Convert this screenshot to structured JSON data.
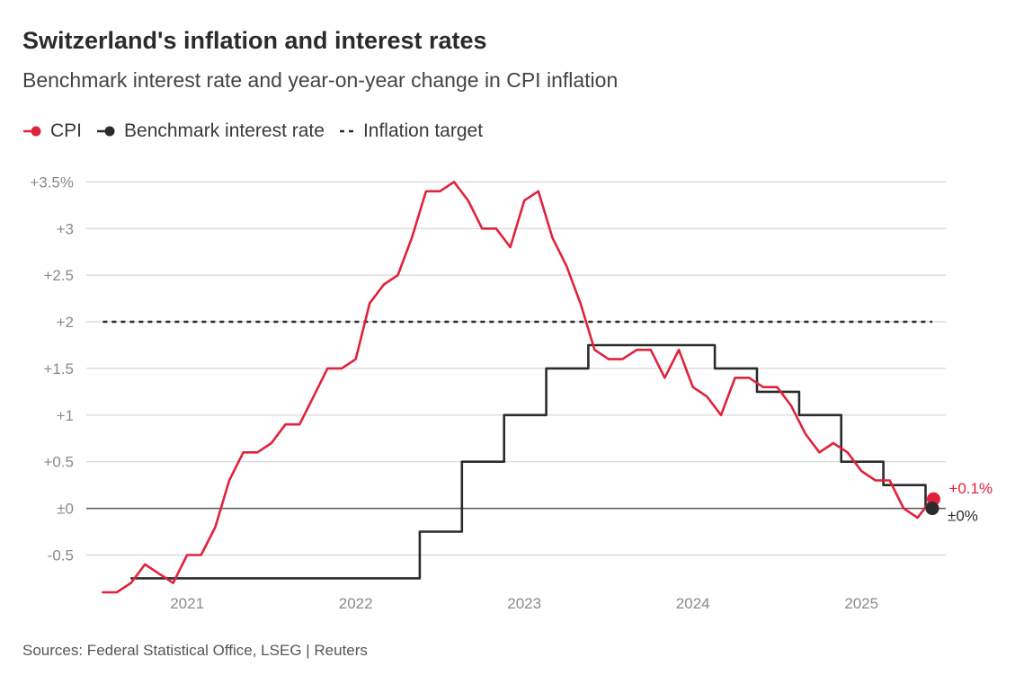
{
  "colors": {
    "cpi": "#e0223a",
    "rate": "#2b2b2b",
    "target": "#2b2b2b",
    "grid": "#cfcfcf",
    "zero": "#555555"
  },
  "chart_data": {
    "type": "line",
    "title": "Switzerland's inflation and interest rates",
    "subtitle": "Benchmark interest rate and year-on-year change in CPI inflation",
    "source": "Sources: Federal Statistical Office, LSEG | Reuters",
    "legend": [
      {
        "name": "CPI",
        "style": "line-dot"
      },
      {
        "name": "Benchmark interest rate",
        "style": "line-dot"
      },
      {
        "name": "Inflation target",
        "style": "dashed"
      }
    ],
    "y_ticks": [
      {
        "value": 3.5,
        "label": "+3.5%"
      },
      {
        "value": 3,
        "label": "+3"
      },
      {
        "value": 2.5,
        "label": "+2.5"
      },
      {
        "value": 2,
        "label": "+2"
      },
      {
        "value": 1.5,
        "label": "+1.5"
      },
      {
        "value": 1,
        "label": "+1"
      },
      {
        "value": 0.5,
        "label": "+0.5"
      },
      {
        "value": 0,
        "label": "±0"
      },
      {
        "value": -0.5,
        "label": "-0.5"
      }
    ],
    "x_ticks": [
      {
        "value": 2021,
        "label": "2021"
      },
      {
        "value": 2022,
        "label": "2022"
      },
      {
        "value": 2023,
        "label": "2023"
      },
      {
        "value": 2024,
        "label": "2024"
      },
      {
        "value": 2025,
        "label": "2025"
      }
    ],
    "xlim": [
      2020.45,
      2025.5
    ],
    "ylim": [
      -0.9,
      3.6
    ],
    "inflation_target": {
      "value": 2,
      "x_range": [
        2020.5,
        2025.42
      ]
    },
    "series": [
      {
        "name": "CPI",
        "points": [
          [
            2020.5,
            -0.9
          ],
          [
            2020.583,
            -0.9
          ],
          [
            2020.667,
            -0.8
          ],
          [
            2020.75,
            -0.6
          ],
          [
            2020.833,
            -0.7
          ],
          [
            2020.917,
            -0.8
          ],
          [
            2021.0,
            -0.5
          ],
          [
            2021.083,
            -0.5
          ],
          [
            2021.167,
            -0.2
          ],
          [
            2021.25,
            0.3
          ],
          [
            2021.333,
            0.6
          ],
          [
            2021.417,
            0.6
          ],
          [
            2021.5,
            0.7
          ],
          [
            2021.583,
            0.9
          ],
          [
            2021.667,
            0.9
          ],
          [
            2021.75,
            1.2
          ],
          [
            2021.833,
            1.5
          ],
          [
            2021.917,
            1.5
          ],
          [
            2022.0,
            1.6
          ],
          [
            2022.083,
            2.2
          ],
          [
            2022.167,
            2.4
          ],
          [
            2022.25,
            2.5
          ],
          [
            2022.333,
            2.9
          ],
          [
            2022.417,
            3.4
          ],
          [
            2022.5,
            3.4
          ],
          [
            2022.583,
            3.5
          ],
          [
            2022.667,
            3.3
          ],
          [
            2022.75,
            3.0
          ],
          [
            2022.833,
            3.0
          ],
          [
            2022.917,
            2.8
          ],
          [
            2023.0,
            3.3
          ],
          [
            2023.083,
            3.4
          ],
          [
            2023.167,
            2.9
          ],
          [
            2023.25,
            2.6
          ],
          [
            2023.333,
            2.2
          ],
          [
            2023.417,
            1.7
          ],
          [
            2023.5,
            1.6
          ],
          [
            2023.583,
            1.6
          ],
          [
            2023.667,
            1.7
          ],
          [
            2023.75,
            1.7
          ],
          [
            2023.833,
            1.4
          ],
          [
            2023.917,
            1.7
          ],
          [
            2024.0,
            1.3
          ],
          [
            2024.083,
            1.2
          ],
          [
            2024.167,
            1.0
          ],
          [
            2024.25,
            1.4
          ],
          [
            2024.333,
            1.4
          ],
          [
            2024.417,
            1.3
          ],
          [
            2024.5,
            1.3
          ],
          [
            2024.583,
            1.1
          ],
          [
            2024.667,
            0.8
          ],
          [
            2024.75,
            0.6
          ],
          [
            2024.833,
            0.7
          ],
          [
            2024.917,
            0.6
          ],
          [
            2025.0,
            0.4
          ],
          [
            2025.083,
            0.3
          ],
          [
            2025.167,
            0.3
          ],
          [
            2025.25,
            0.0
          ],
          [
            2025.333,
            -0.1
          ],
          [
            2025.417,
            0.1
          ]
        ],
        "last_label": "+0.1%"
      },
      {
        "name": "Benchmark interest rate",
        "step": true,
        "points": [
          [
            2020.67,
            -0.75
          ],
          [
            2022.38,
            -0.75
          ],
          [
            2022.38,
            -0.25
          ],
          [
            2022.63,
            -0.25
          ],
          [
            2022.63,
            0.5
          ],
          [
            2022.88,
            0.5
          ],
          [
            2022.88,
            1.0
          ],
          [
            2023.13,
            1.0
          ],
          [
            2023.13,
            1.5
          ],
          [
            2023.38,
            1.5
          ],
          [
            2023.38,
            1.75
          ],
          [
            2024.13,
            1.75
          ],
          [
            2024.13,
            1.5
          ],
          [
            2024.38,
            1.5
          ],
          [
            2024.38,
            1.25
          ],
          [
            2024.63,
            1.25
          ],
          [
            2024.63,
            1.0
          ],
          [
            2024.88,
            1.0
          ],
          [
            2024.88,
            0.5
          ],
          [
            2025.13,
            0.5
          ],
          [
            2025.13,
            0.25
          ],
          [
            2025.38,
            0.25
          ],
          [
            2025.38,
            0.0
          ],
          [
            2025.42,
            0.0
          ]
        ],
        "last_label": "±0%"
      }
    ]
  }
}
